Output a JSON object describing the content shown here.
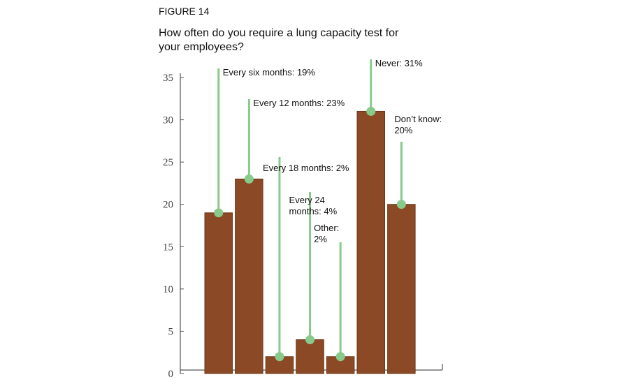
{
  "chart_data": {
    "type": "bar",
    "label": "FIGURE 14",
    "title": "How often do you require a lung capacity test for\nyour employees?",
    "categories": [
      "Every six months",
      "Every 12 months",
      "Every 18 months",
      "Every 24 months",
      "Other",
      "Never",
      "Don't know"
    ],
    "values": [
      19,
      23,
      2,
      4,
      2,
      31,
      20
    ],
    "value_labels": [
      "Every six months: 19%",
      "Every 12 months: 23%",
      "Every 18 months: 2%",
      "Every 24\nmonths: 4%",
      "Other:\n2%",
      "Never: 31%",
      "Don’t know:\n20%"
    ],
    "color": "#8b4a25",
    "marker_color": "#88c98c",
    "ylim": [
      0,
      35
    ],
    "yticks": [
      0,
      5,
      10,
      15,
      20,
      25,
      30,
      35
    ]
  }
}
